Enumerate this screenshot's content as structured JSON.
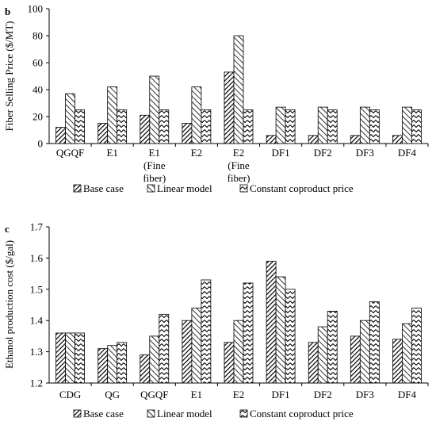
{
  "chart_data": [
    {
      "type": "bar",
      "panel_label": "b",
      "ylabel": "Fiber Selling Price ($/MT)",
      "ylim": [
        0,
        100
      ],
      "yticks": [
        0,
        20,
        40,
        60,
        80,
        100
      ],
      "categories": [
        [
          "QGQF"
        ],
        [
          "E1"
        ],
        [
          "E1",
          "(Fine",
          "fiber)"
        ],
        [
          "E2"
        ],
        [
          "E2",
          "(Fine",
          "fiber)"
        ],
        [
          "DF1"
        ],
        [
          "DF2"
        ],
        [
          "DF3"
        ],
        [
          "DF4"
        ]
      ],
      "series": [
        {
          "name": "Base case",
          "values": [
            12,
            15,
            21,
            15,
            53,
            6,
            6,
            6,
            6
          ]
        },
        {
          "name": "Linear model",
          "values": [
            37,
            42,
            50,
            42,
            80,
            27,
            27,
            27,
            27
          ]
        },
        {
          "name": "Constant coproduct price",
          "values": [
            25,
            25,
            25,
            25,
            25,
            25,
            25,
            25,
            25
          ]
        }
      ],
      "legend_position": "bottom",
      "grid": false
    },
    {
      "type": "bar",
      "panel_label": "c",
      "ylabel": "Ethanol production cost ($/gal)",
      "ylim": [
        1.2,
        1.7
      ],
      "yticks": [
        1.2,
        1.3,
        1.4,
        1.5,
        1.6,
        1.7
      ],
      "categories": [
        [
          "CDG"
        ],
        [
          "QG"
        ],
        [
          "QGQF"
        ],
        [
          "E1"
        ],
        [
          "E2"
        ],
        [
          "DF1"
        ],
        [
          "DF2"
        ],
        [
          "DF3"
        ],
        [
          "DF4"
        ]
      ],
      "series": [
        {
          "name": "Base case",
          "values": [
            1.36,
            1.31,
            1.29,
            1.4,
            1.33,
            1.59,
            1.33,
            1.35,
            1.34
          ]
        },
        {
          "name": "Linear model",
          "values": [
            1.36,
            1.32,
            1.35,
            1.44,
            1.4,
            1.54,
            1.38,
            1.4,
            1.39
          ]
        },
        {
          "name": "Constant coproduct price",
          "values": [
            1.36,
            1.33,
            1.42,
            1.53,
            1.52,
            1.5,
            1.43,
            1.46,
            1.44
          ]
        }
      ],
      "legend_position": "bottom",
      "grid": false
    }
  ]
}
